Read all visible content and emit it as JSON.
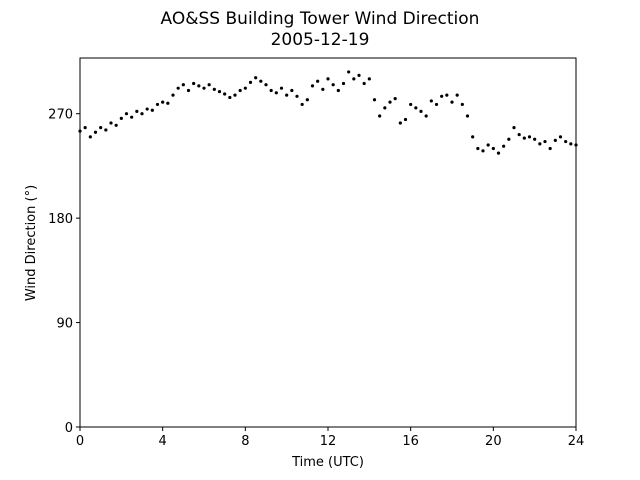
{
  "chart_data": {
    "type": "scatter",
    "title": "AO&SS Building Tower Wind Direction",
    "subtitle": "2005-12-19",
    "x_label": "Time (UTC)",
    "y_label": "Wind Direction (°)",
    "color": "#000000",
    "xlim": [
      0,
      24
    ],
    "xticks": [
      0,
      4,
      8,
      12,
      16,
      20,
      24
    ],
    "ylim": [
      0,
      318
    ],
    "yticks": [
      0,
      90,
      180,
      270
    ],
    "x": [
      0,
      0.25,
      0.5,
      0.75,
      1,
      1.25,
      1.5,
      1.75,
      2,
      2.25,
      2.5,
      2.75,
      3,
      3.25,
      3.5,
      3.75,
      4,
      4.25,
      4.5,
      4.75,
      5,
      5.25,
      5.5,
      5.75,
      6,
      6.25,
      6.5,
      6.75,
      7,
      7.25,
      7.5,
      7.75,
      8,
      8.25,
      8.5,
      8.75,
      9,
      9.25,
      9.5,
      9.75,
      10,
      10.25,
      10.5,
      10.75,
      11,
      11.25,
      11.5,
      11.75,
      12,
      12.25,
      12.5,
      12.75,
      13,
      13.25,
      13.5,
      13.75,
      14,
      14.25,
      14.5,
      14.75,
      15,
      15.25,
      15.5,
      15.75,
      16,
      16.25,
      16.5,
      16.75,
      17,
      17.25,
      17.5,
      17.75,
      18,
      18.25,
      18.5,
      18.75,
      19,
      19.25,
      19.5,
      19.75,
      20,
      20.25,
      20.5,
      20.75,
      21,
      21.25,
      21.5,
      21.75,
      22,
      22.25,
      22.5,
      22.75,
      23,
      23.25,
      23.5,
      23.75,
      24
    ],
    "values": [
      255,
      258,
      250,
      254,
      258,
      256,
      262,
      260,
      266,
      270,
      267,
      272,
      270,
      274,
      273,
      278,
      280,
      279,
      286,
      292,
      295,
      290,
      296,
      294,
      292,
      295,
      291,
      289,
      287,
      284,
      286,
      290,
      292,
      297,
      301,
      298,
      295,
      290,
      288,
      292,
      286,
      290,
      285,
      278,
      282,
      294,
      298,
      291,
      300,
      295,
      290,
      296,
      306,
      300,
      303,
      296,
      300,
      282,
      268,
      275,
      280,
      283,
      262,
      265,
      278,
      275,
      272,
      268,
      281,
      278,
      285,
      286,
      280,
      286,
      278,
      268,
      250,
      240,
      238,
      243,
      240,
      236,
      242,
      248,
      258,
      252,
      249,
      250,
      248,
      244,
      246,
      240,
      247,
      250,
      246,
      244,
      243
    ]
  }
}
